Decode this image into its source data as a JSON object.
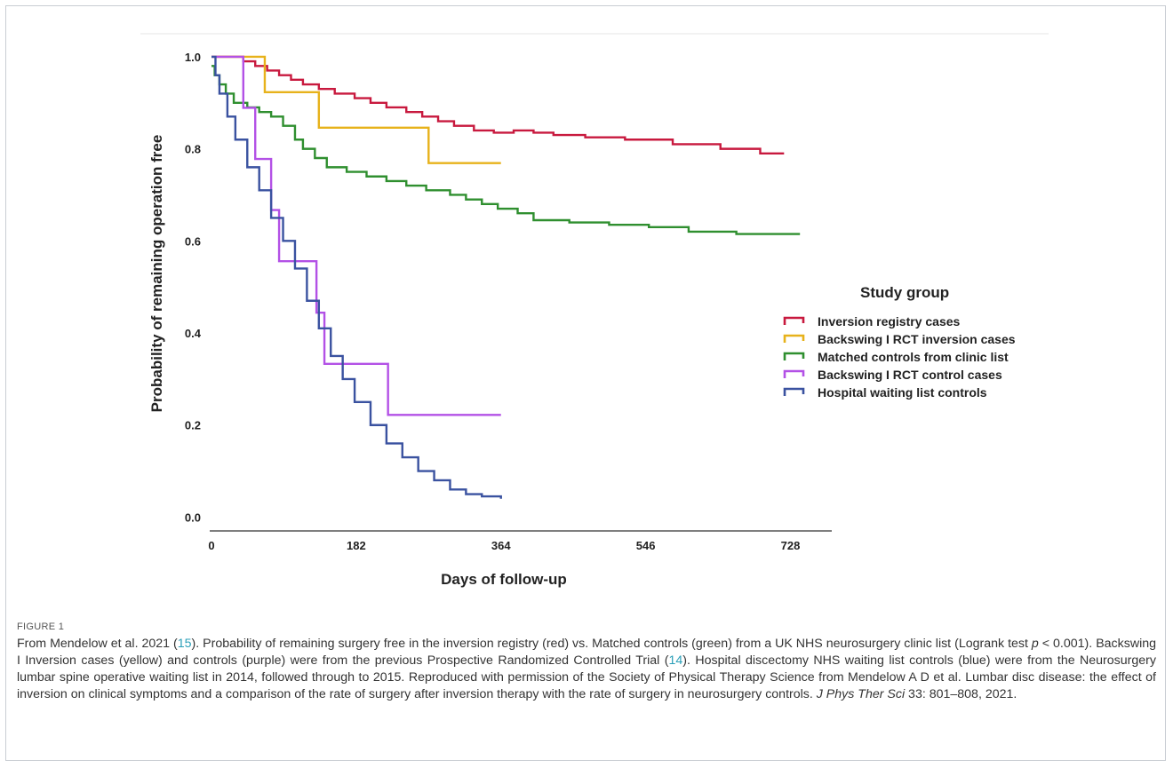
{
  "figure": {
    "label": "FIGURE 1",
    "caption_parts": [
      {
        "t": "From Mendelow et al. 2021 ("
      },
      {
        "t": "15",
        "ref": true
      },
      {
        "t": "). Probability of remaining surgery free in the inversion registry (red) vs. Matched controls (green) from a UK NHS neurosurgery clinic list (Logrank test "
      },
      {
        "t": "p",
        "italic": true
      },
      {
        "t": " < 0.001). Backswing I Inversion cases (yellow) and controls (purple) were from the previous Prospective Randomized Controlled Trial ("
      },
      {
        "t": "14",
        "ref": true
      },
      {
        "t": "). Hospital discectomy NHS waiting list controls (blue) were from the Neurosurgery lumbar spine operative waiting list in 2014, followed through to 2015. Reproduced with permission of the Society of Physical Therapy Science from Mendelow A D et al. Lumbar disc disease: the effect of inversion on clinical symptoms and a comparison of the rate of surgery after inversion therapy with the rate of surgery in neurosurgery controls. "
      },
      {
        "t": "J Phys Ther Sci",
        "italic": true
      },
      {
        "t": " 33: 801–808, 2021."
      }
    ]
  },
  "chart_data": {
    "type": "line",
    "step": true,
    "xlabel": "Days of follow-up",
    "ylabel": "Probability of remaining operation free",
    "xticks": [
      0,
      182,
      364,
      546,
      728
    ],
    "yticks": [
      0.0,
      0.2,
      0.4,
      0.6,
      0.8,
      1.0
    ],
    "ytick_labels": [
      "0.0",
      "0.2",
      "0.4",
      "0.6",
      "0.8",
      "1.0"
    ],
    "xlim": [
      0,
      780
    ],
    "ylim": [
      -0.03,
      1.05
    ],
    "legend": {
      "title": "Study group",
      "placement": "right"
    },
    "series": [
      {
        "name": "Inversion registry cases",
        "color": "#c8193e",
        "x": [
          0,
          25,
          40,
          55,
          70,
          85,
          100,
          115,
          135,
          155,
          180,
          200,
          220,
          245,
          265,
          285,
          305,
          330,
          355,
          380,
          405,
          430,
          470,
          520,
          580,
          640,
          690,
          720
        ],
        "y": [
          1.0,
          1.0,
          0.99,
          0.98,
          0.97,
          0.96,
          0.95,
          0.94,
          0.93,
          0.92,
          0.91,
          0.9,
          0.89,
          0.88,
          0.87,
          0.86,
          0.85,
          0.84,
          0.835,
          0.84,
          0.835,
          0.83,
          0.825,
          0.82,
          0.81,
          0.8,
          0.79,
          0.79
        ]
      },
      {
        "name": "Backswing I RCT inversion cases",
        "color": "#e7b21b",
        "x": [
          0,
          55,
          67,
          133,
          135,
          272,
          273,
          364
        ],
        "y": [
          1.0,
          1.0,
          0.923,
          0.923,
          0.846,
          0.846,
          0.769,
          0.769
        ]
      },
      {
        "name": "Matched controls from clinic list",
        "color": "#2f8f2f",
        "x": [
          0,
          4,
          10,
          18,
          28,
          45,
          60,
          75,
          90,
          105,
          115,
          130,
          145,
          170,
          195,
          220,
          245,
          270,
          300,
          320,
          340,
          360,
          385,
          405,
          450,
          500,
          550,
          600,
          660,
          740
        ],
        "y": [
          0.98,
          0.96,
          0.94,
          0.92,
          0.9,
          0.89,
          0.88,
          0.87,
          0.85,
          0.82,
          0.8,
          0.78,
          0.76,
          0.75,
          0.74,
          0.73,
          0.72,
          0.71,
          0.7,
          0.69,
          0.68,
          0.67,
          0.66,
          0.645,
          0.64,
          0.635,
          0.63,
          0.62,
          0.615,
          0.615
        ]
      },
      {
        "name": "Backswing I RCT control cases",
        "color": "#b351e6",
        "x": [
          0,
          38,
          40,
          55,
          70,
          75,
          80,
          85,
          90,
          130,
          132,
          140,
          142,
          220,
          222,
          364
        ],
        "y": [
          1.0,
          1.0,
          0.889,
          0.778,
          0.778,
          0.667,
          0.667,
          0.556,
          0.556,
          0.556,
          0.444,
          0.444,
          0.333,
          0.333,
          0.222,
          0.222
        ]
      },
      {
        "name": "Hospital waiting list controls",
        "color": "#3a52a0",
        "x": [
          0,
          5,
          10,
          20,
          30,
          45,
          60,
          75,
          90,
          105,
          120,
          135,
          150,
          165,
          180,
          200,
          220,
          240,
          260,
          280,
          300,
          320,
          340,
          364
        ],
        "y": [
          1.0,
          0.96,
          0.92,
          0.87,
          0.82,
          0.76,
          0.71,
          0.65,
          0.6,
          0.54,
          0.47,
          0.41,
          0.35,
          0.3,
          0.25,
          0.2,
          0.16,
          0.13,
          0.1,
          0.08,
          0.06,
          0.05,
          0.045,
          0.04
        ]
      }
    ]
  }
}
